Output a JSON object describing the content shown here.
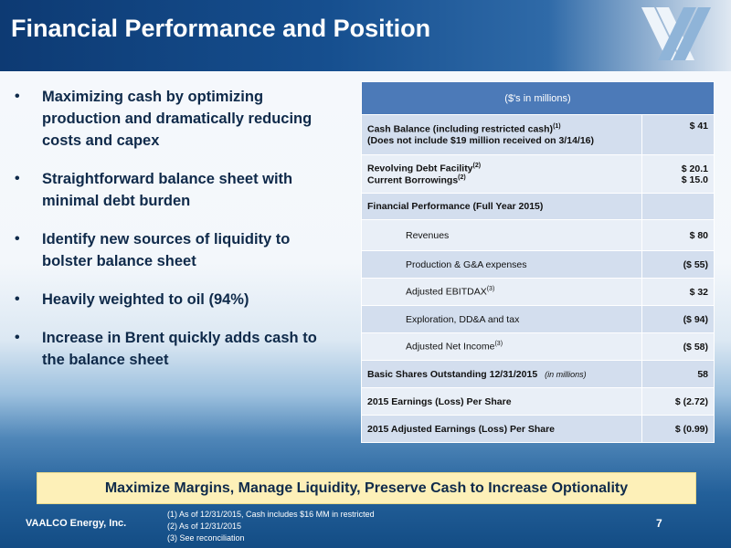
{
  "slide": {
    "title": "Financial Performance and Position",
    "company": "VAALCO Energy, Inc.",
    "page_number": "7"
  },
  "bullets": [
    "Maximizing cash by optimizing production and dramatically reducing costs and capex",
    "Straightforward balance sheet with minimal debt burden",
    "Identify new sources of liquidity to bolster balance sheet",
    "Heavily weighted to oil (94%)",
    "Increase in Brent quickly adds cash to the balance sheet"
  ],
  "table": {
    "header": "($'s in millions)",
    "cash_label_1": "Cash Balance (including restricted cash)",
    "cash_sup": "(1)",
    "cash_label_2": "(Does not include $19 million received on 3/14/16)",
    "cash_value": "$ 41",
    "revolving_label": "Revolving Debt Facility",
    "revolving_sup": "(2)",
    "revolving_value": "$ 20.1",
    "borrowings_label": "Current Borrowings",
    "borrowings_sup": "(2)",
    "borrowings_value": "$ 15.0",
    "fin_perf_label": "Financial Performance (Full Year 2015)",
    "revenues_label": "Revenues",
    "revenues_value": "$ 80",
    "production_label": "Production & G&A expenses",
    "production_value": "($ 55)",
    "ebitdax_label": "Adjusted EBITDAX",
    "ebitdax_sup": "(3)",
    "ebitdax_value": "$ 32",
    "exploration_label": "Exploration, DD&A and tax",
    "exploration_value": "($ 94)",
    "net_income_label": "Adjusted Net Income",
    "net_income_sup": "(3)",
    "net_income_value": "($ 58)",
    "shares_label": "Basic Shares Outstanding 12/31/2015",
    "shares_units": "(in millions)",
    "shares_value": "58",
    "eps_label": "2015 Earnings (Loss) Per Share",
    "eps_value": "$ (2.72)",
    "adj_eps_label": "2015 Adjusted Earnings (Loss) Per Share",
    "adj_eps_value": "$ (0.99)"
  },
  "banner": "Maximize Margins, Manage Liquidity, Preserve Cash to Increase Optionality",
  "footnotes": [
    "(1)   As of 12/31/2015, Cash includes $16 MM in restricted",
    "(2)   As of 12/31/2015",
    "(3)   See reconciliation"
  ],
  "colors": {
    "title_bar": "#164f8f",
    "table_header": "#4c7ab8",
    "row_dark": "#d3deee",
    "row_light": "#e9eff7",
    "banner": "#fdf0b8",
    "text_dark": "#0f2a4a"
  },
  "icons": {
    "logo": "vaalco-logo-icon"
  }
}
